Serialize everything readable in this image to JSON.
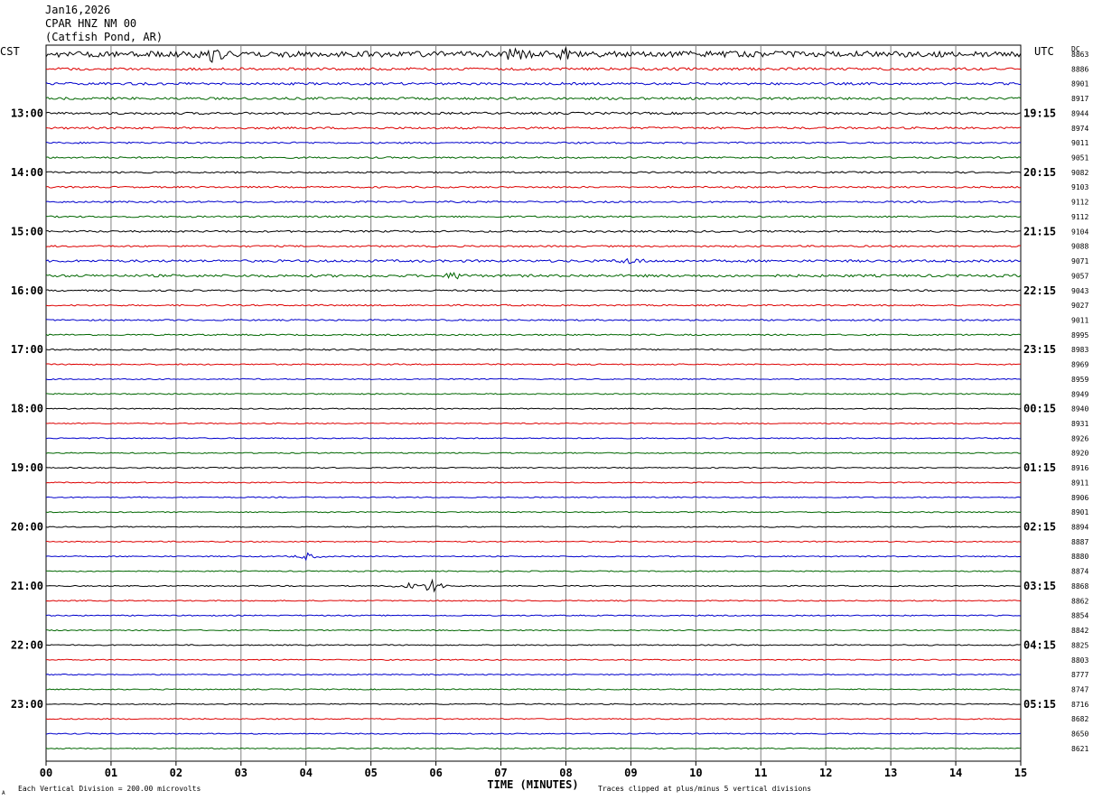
{
  "header": {
    "date": "Jan16,2026",
    "channel": "CPAR HNZ NM 00",
    "location": "(Catfish Pond, AR)"
  },
  "left_timezone": "CST",
  "right_timezone": "UTC",
  "dc_label": "DC",
  "footer": {
    "scale_note": "Each Vertical Division =  200.00 microvolts",
    "clip_note": "Traces clipped at plus/minus 5 vertical divisions",
    "corner_mark": "A"
  },
  "colors": {
    "trace_cycle": [
      "#000000",
      "#dd0000",
      "#0000cc",
      "#006600"
    ],
    "grid": "#808080",
    "background": "#ffffff"
  },
  "chart_data": {
    "type": "line",
    "subtype": "seismogram-helicorder",
    "xlabel": "TIME (MINUTES)",
    "xlim": [
      0,
      15
    ],
    "x_ticks": [
      "00",
      "01",
      "02",
      "03",
      "04",
      "05",
      "06",
      "07",
      "08",
      "09",
      "10",
      "11",
      "12",
      "13",
      "14",
      "15"
    ],
    "left_hour_labels": [
      "13:00",
      "14:00",
      "15:00",
      "16:00",
      "17:00",
      "18:00",
      "19:00",
      "20:00",
      "21:00",
      "22:00",
      "23:00"
    ],
    "right_hour_labels": [
      "19:15",
      "20:15",
      "21:15",
      "22:15",
      "23:15",
      "00:15",
      "01:15",
      "02:15",
      "03:15",
      "04:15",
      "05:15"
    ],
    "hour_label_first_trace_index": 4,
    "traces_per_hour": 4,
    "dc_values": [
      "8863",
      "8886",
      "8901",
      "8917",
      "8944",
      "8974",
      "9011",
      "9051",
      "9082",
      "9103",
      "9112",
      "9112",
      "9104",
      "9088",
      "9071",
      "9057",
      "9043",
      "9027",
      "9011",
      "8995",
      "8983",
      "8969",
      "8959",
      "8949",
      "8940",
      "8931",
      "8926",
      "8920",
      "8916",
      "8911",
      "8906",
      "8901",
      "8894",
      "8887",
      "8880",
      "8874",
      "8868",
      "8862",
      "8854",
      "8842",
      "8825",
      "8803",
      "8777",
      "8747",
      "8716",
      "8682",
      "8650",
      "8621"
    ],
    "noise_levels": [
      3.2,
      1.4,
      1.3,
      1.3,
      1.2,
      1.1,
      0.9,
      0.9,
      0.9,
      0.9,
      0.9,
      0.9,
      1.0,
      0.9,
      1.3,
      1.4,
      0.9,
      0.8,
      0.8,
      0.8,
      0.8,
      0.7,
      0.6,
      0.6,
      0.6,
      0.6,
      0.6,
      0.6,
      0.6,
      0.6,
      0.6,
      0.6,
      0.6,
      0.6,
      0.6,
      0.6,
      0.6,
      0.6,
      0.6,
      0.6,
      0.6,
      0.6,
      0.6,
      0.6,
      0.6,
      0.6,
      0.6,
      0.6
    ],
    "events": [
      {
        "trace": 0,
        "minute": 2.6,
        "amplitude": 9
      },
      {
        "trace": 0,
        "minute": 7.2,
        "amplitude": 9
      },
      {
        "trace": 0,
        "minute": 8.0,
        "amplitude": 5
      },
      {
        "trace": 14,
        "minute": 9.0,
        "amplitude": 4
      },
      {
        "trace": 15,
        "minute": 6.3,
        "amplitude": 4
      },
      {
        "trace": 36,
        "minute": 5.95,
        "amplitude": 9
      },
      {
        "trace": 36,
        "minute": 5.55,
        "amplitude": 4
      },
      {
        "trace": 34,
        "minute": 4.02,
        "amplitude": 4
      }
    ]
  }
}
